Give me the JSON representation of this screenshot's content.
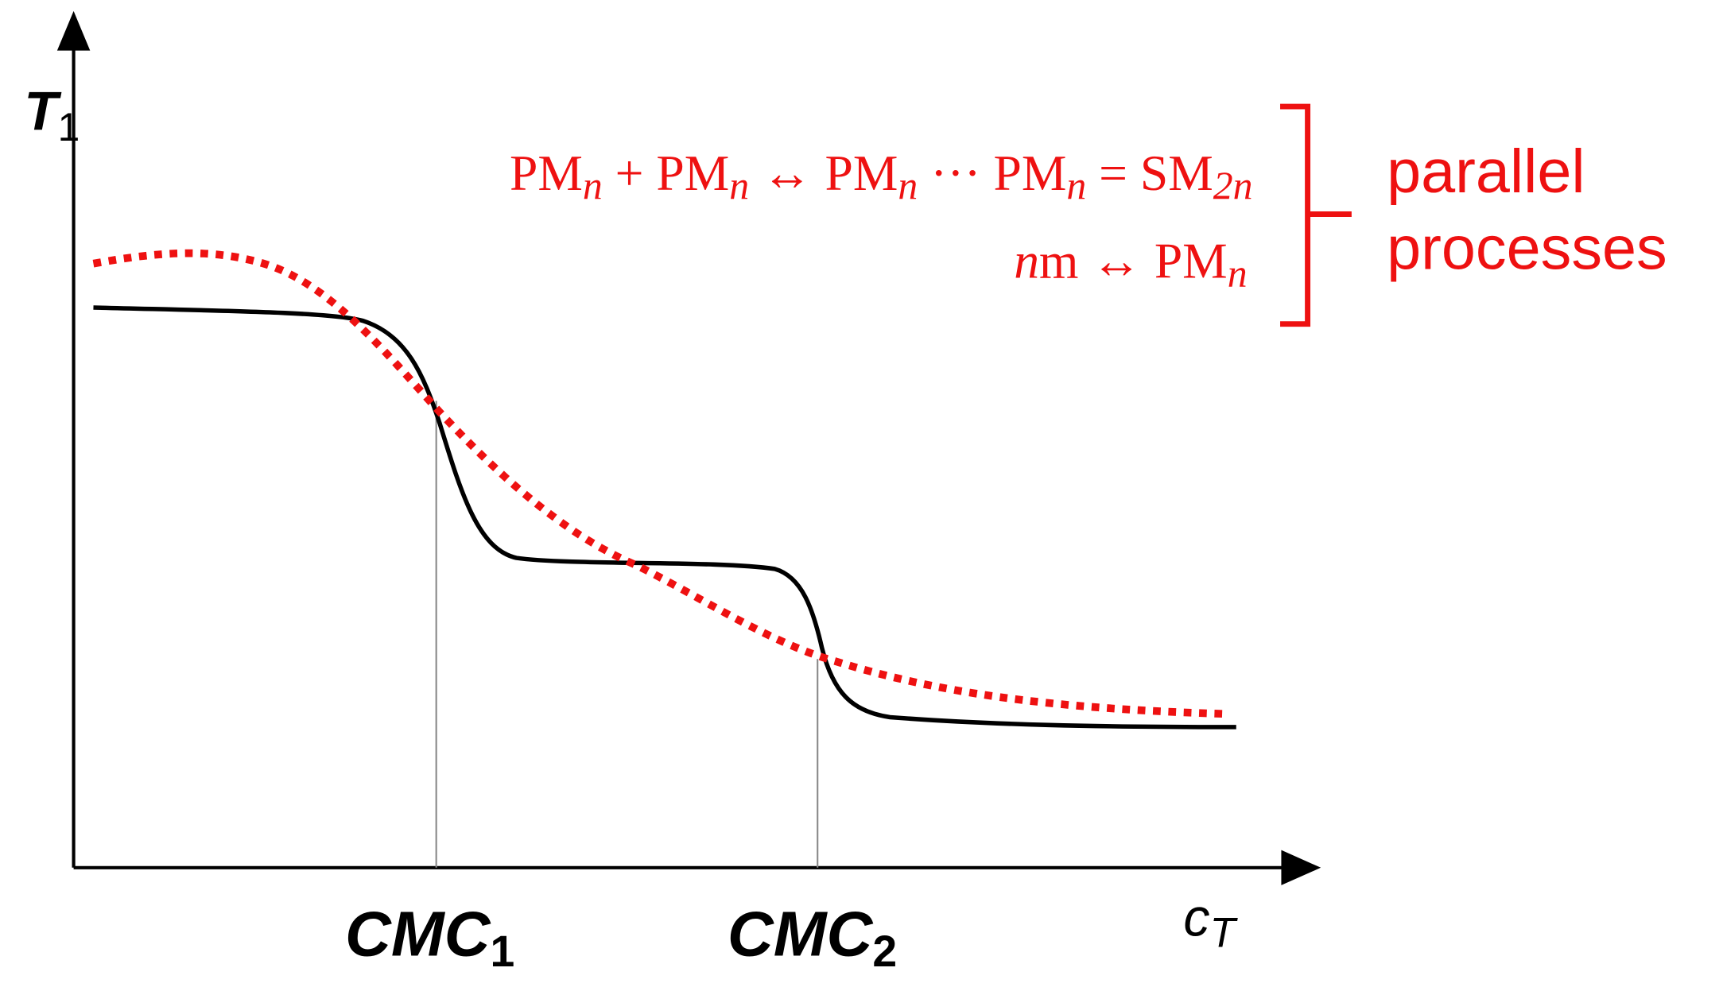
{
  "axes": {
    "y_label": {
      "main": "T",
      "sub": "1"
    },
    "x_label": {
      "main": "c",
      "sub": "T"
    }
  },
  "markers": [
    {
      "main": "CMC",
      "sub": "1"
    },
    {
      "main": "CMC",
      "sub": "2"
    }
  ],
  "equations": [
    {
      "parts": [
        "PM",
        "n",
        " + PM",
        "n",
        " ↔ PM",
        "n",
        " ··· PM",
        "n",
        " = SM",
        "2n"
      ]
    },
    {
      "parts": [
        "n",
        "m ↔ PM",
        "n"
      ]
    }
  ],
  "bracket_label": [
    "parallel",
    "processes"
  ]
}
